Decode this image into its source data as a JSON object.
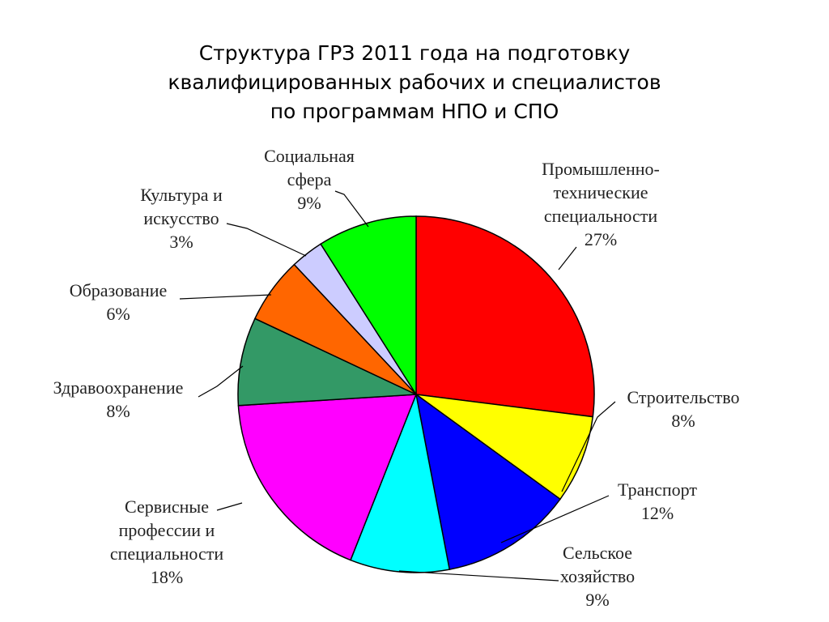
{
  "chart_data": {
    "type": "pie",
    "title_lines": [
      "Структура ГРЗ 2011 года на подготовку",
      "квалифицированных рабочих и специалистов",
      "по программам НПО и СПО"
    ],
    "slices": [
      {
        "label_lines": [
          "Промышленно-",
          "технические",
          "специальности",
          "27%"
        ],
        "value": 27,
        "color": "#ff0000"
      },
      {
        "label_lines": [
          "Строительство",
          "8%"
        ],
        "value": 8,
        "color": "#ffff00"
      },
      {
        "label_lines": [
          "Транспорт",
          "12%"
        ],
        "value": 12,
        "color": "#0000ff"
      },
      {
        "label_lines": [
          "Сельское",
          "хозяйство",
          "9%"
        ],
        "value": 9,
        "color": "#00ffff"
      },
      {
        "label_lines": [
          "Сервисные",
          "профессии и",
          "специальности",
          "18%"
        ],
        "value": 18,
        "color": "#ff00ff"
      },
      {
        "label_lines": [
          "Здравоохранение",
          "8%"
        ],
        "value": 8,
        "color": "#339966"
      },
      {
        "label_lines": [
          "Образование",
          "6%"
        ],
        "value": 6,
        "color": "#ff6600"
      },
      {
        "label_lines": [
          "Культура и",
          "искусство",
          "3%"
        ],
        "value": 3,
        "color": "#ccccff"
      },
      {
        "label_lines": [
          "Социальная",
          "сфера",
          "9%"
        ],
        "value": 9,
        "color": "#00ff00"
      }
    ],
    "legend": "none"
  }
}
